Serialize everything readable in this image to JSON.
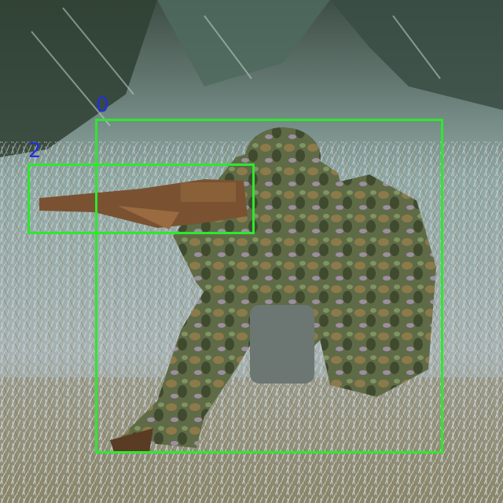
{
  "detections": [
    {
      "label": "0",
      "color": "#2ee82e",
      "label_color": "#1f2fe0"
    },
    {
      "label": "2",
      "color": "#2ee82e",
      "label_color": "#1f2fe0"
    }
  ],
  "scene_icons": [
    "soldier-figure",
    "rifle-shape",
    "backpack-shape",
    "frosted-grass"
  ]
}
